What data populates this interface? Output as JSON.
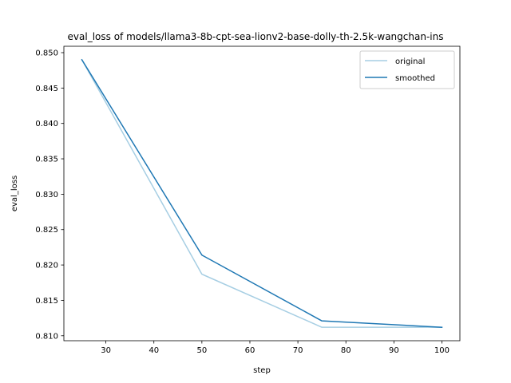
{
  "chart_data": {
    "type": "line",
    "title": "eval_loss of models/llama3-8b-cpt-sea-lionv2-base-dolly-th-2.5k-wangchan-ins",
    "xlabel": "step",
    "ylabel": "eval_loss",
    "x": [
      25,
      50,
      75,
      100
    ],
    "series": [
      {
        "name": "original",
        "values": [
          0.849,
          0.8187,
          0.8112,
          0.8112
        ],
        "color": "#a6cee3"
      },
      {
        "name": "smoothed",
        "values": [
          0.849,
          0.8214,
          0.8121,
          0.8112
        ],
        "color": "#1f78b4"
      }
    ],
    "xlim": [
      21.25,
      103.75
    ],
    "ylim": [
      0.8093,
      0.8509
    ],
    "xticks": [
      30,
      40,
      50,
      60,
      70,
      80,
      90,
      100
    ],
    "yticks": [
      0.81,
      0.815,
      0.82,
      0.825,
      0.83,
      0.835,
      0.84,
      0.845,
      0.85
    ],
    "ytick_labels": [
      "0.810",
      "0.815",
      "0.820",
      "0.825",
      "0.830",
      "0.835",
      "0.840",
      "0.845",
      "0.850"
    ],
    "xtick_labels": [
      "30",
      "40",
      "50",
      "60",
      "70",
      "80",
      "90",
      "100"
    ],
    "grid": false,
    "legend": "top-right"
  }
}
